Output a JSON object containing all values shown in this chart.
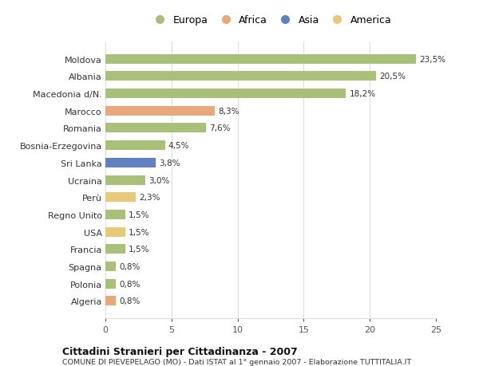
{
  "countries": [
    "Moldova",
    "Albania",
    "Macedonia d/N.",
    "Marocco",
    "Romania",
    "Bosnia-Erzegovina",
    "Sri Lanka",
    "Ucraina",
    "Perù",
    "Regno Unito",
    "USA",
    "Francia",
    "Spagna",
    "Polonia",
    "Algeria"
  ],
  "values": [
    23.5,
    20.5,
    18.2,
    8.3,
    7.6,
    4.5,
    3.8,
    3.0,
    2.3,
    1.5,
    1.5,
    1.5,
    0.8,
    0.8,
    0.8
  ],
  "labels": [
    "23,5%",
    "20,5%",
    "18,2%",
    "8,3%",
    "7,6%",
    "4,5%",
    "3,8%",
    "3,0%",
    "2,3%",
    "1,5%",
    "1,5%",
    "1,5%",
    "0,8%",
    "0,8%",
    "0,8%"
  ],
  "continents": [
    "Europa",
    "Europa",
    "Europa",
    "Africa",
    "Europa",
    "Europa",
    "Asia",
    "Europa",
    "America",
    "Europa",
    "America",
    "Europa",
    "Europa",
    "Europa",
    "Africa"
  ],
  "colors": {
    "Europa": "#a8c07a",
    "Africa": "#e8a87c",
    "Asia": "#6080c0",
    "America": "#e8c97a"
  },
  "title": "Cittadini Stranieri per Cittadinanza - 2007",
  "subtitle": "COMUNE DI PIEVEPELAGO (MO) - Dati ISTAT al 1° gennaio 2007 - Elaborazione TUTTITALIA.IT",
  "xlim": [
    0,
    25
  ],
  "xticks": [
    0,
    5,
    10,
    15,
    20,
    25
  ],
  "background_color": "#ffffff",
  "grid_color": "#dddddd",
  "bar_height": 0.55
}
